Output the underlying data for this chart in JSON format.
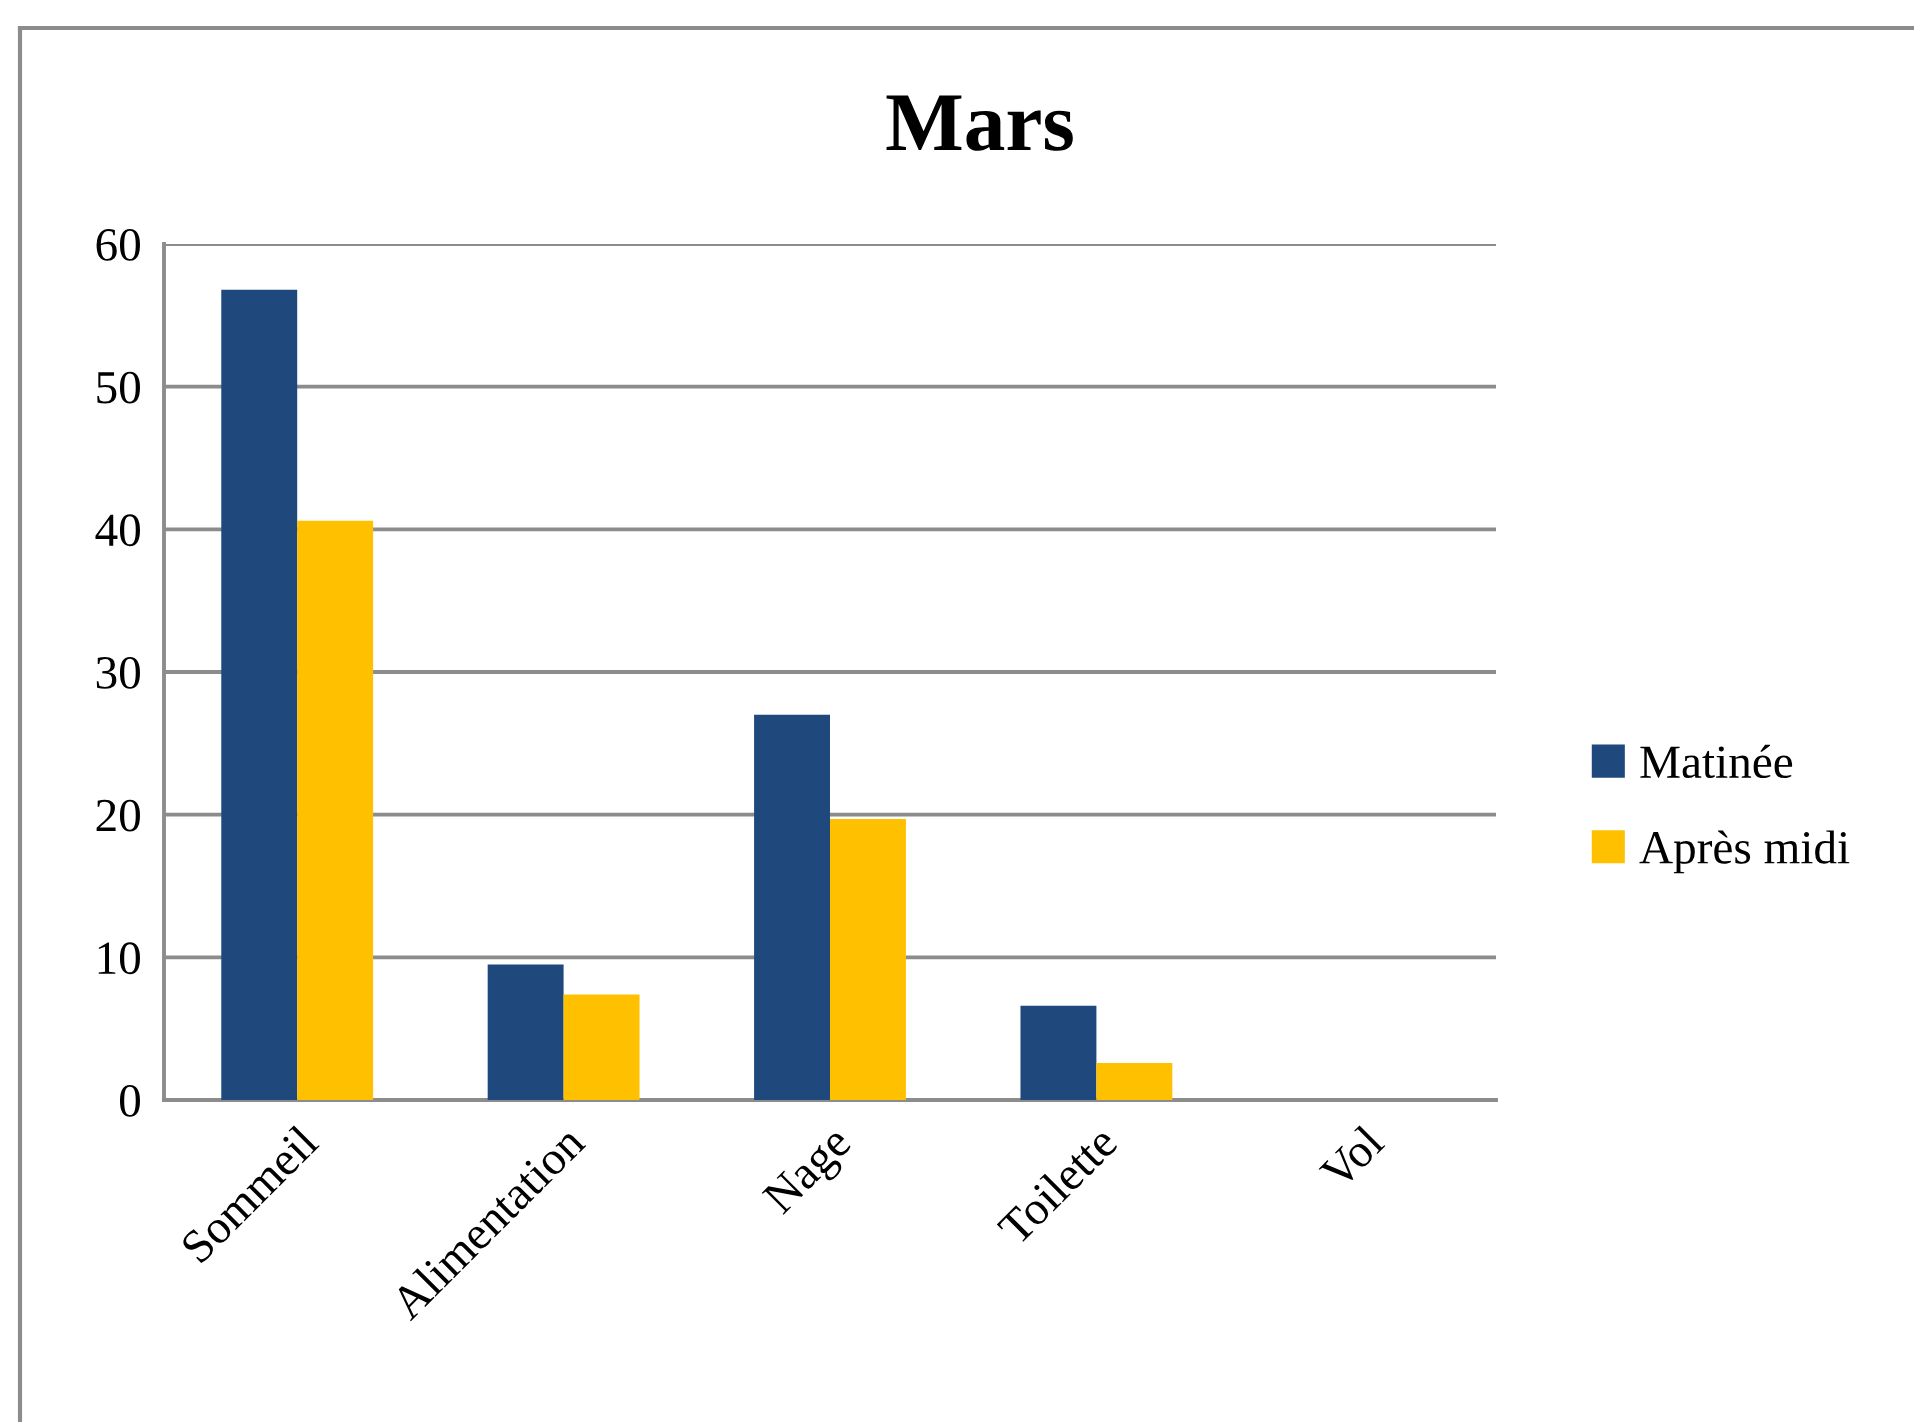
{
  "chart_data": {
    "type": "bar",
    "title": "Mars",
    "categories": [
      "Sommeil",
      "Alimentation",
      "Nage",
      "Toilette",
      "Vol"
    ],
    "series": [
      {
        "name": "Matinée",
        "color": "#1f497d",
        "values": [
          56.8,
          9.5,
          27,
          6.6,
          0
        ]
      },
      {
        "name": "Après midi",
        "color": "#ffc000",
        "values": [
          40.6,
          7.4,
          19.7,
          2.6,
          0
        ]
      }
    ],
    "ylim": [
      0,
      60
    ],
    "yticks": [
      0,
      10,
      20,
      30,
      40,
      50,
      60
    ],
    "grid": "y",
    "legend": "right"
  }
}
